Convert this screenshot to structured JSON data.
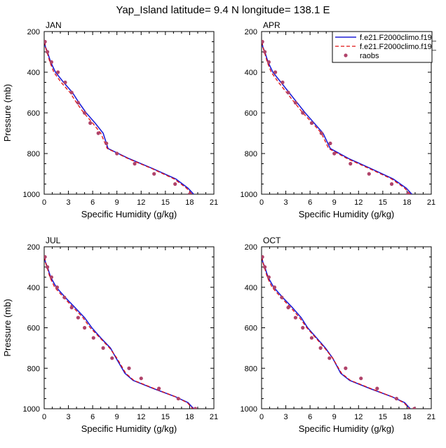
{
  "title": "Yap_Island  latitude= 9.4 N longitude= 138.1 E",
  "colors": {
    "model1": "#1f1fd6",
    "model2": "#e01010",
    "obs": "#b0436a"
  },
  "legend": {
    "placement": "top-right of APR panel",
    "items": [
      "f.e21.F2000climo.f19_",
      "f.e21.F2000climo.f19_",
      "raobs"
    ]
  },
  "chart_data": [
    {
      "type": "line",
      "panel": "JAN",
      "xlabel": "Specific Humidity (g/kg)",
      "ylabel": "Pressure (mb)",
      "xlim": [
        0,
        21
      ],
      "ylim": [
        1000,
        200
      ],
      "y_inverted": true,
      "xticks": [
        0,
        3,
        6,
        9,
        12,
        15,
        18,
        21
      ],
      "yticks": [
        200,
        400,
        600,
        800,
        1000
      ],
      "series": [
        {
          "name": "f.e21.F2000climo.f19_",
          "style": "solid",
          "color": "#1f1fd6",
          "x": [
            0.05,
            0.15,
            0.4,
            0.8,
            1.4,
            2.4,
            3.5,
            4.3,
            5.2,
            6.3,
            7.3,
            7.9,
            10.5,
            13.5,
            16.3,
            17.8,
            18.5
          ],
          "y": [
            250,
            275,
            300,
            350,
            400,
            450,
            500,
            550,
            600,
            650,
            700,
            775,
            825,
            875,
            925,
            970,
            1000
          ]
        },
        {
          "name": "f.e21.F2000climo.f19_",
          "style": "dashed",
          "color": "#e01010",
          "x": [
            0.05,
            0.15,
            0.35,
            0.7,
            1.2,
            2.1,
            3.2,
            4.0,
            4.9,
            6.0,
            7.0,
            7.8,
            10.4,
            13.4,
            16.1,
            17.6,
            18.3
          ],
          "y": [
            250,
            275,
            300,
            350,
            400,
            450,
            500,
            550,
            600,
            650,
            700,
            775,
            825,
            875,
            925,
            970,
            1000
          ]
        }
      ],
      "obs": {
        "name": "raobs",
        "x": [
          0.1,
          0.4,
          0.9,
          1.7,
          2.6,
          3.4,
          4.2,
          5.0,
          5.7,
          6.7,
          7.7,
          9.0,
          11.2,
          13.6,
          16.2,
          18.0
        ],
        "y": [
          250,
          300,
          350,
          400,
          450,
          500,
          550,
          600,
          650,
          700,
          750,
          800,
          850,
          900,
          950,
          1000
        ]
      }
    },
    {
      "type": "line",
      "panel": "APR",
      "xlabel": "Specific Humidity (g/kg)",
      "ylabel": "",
      "xlim": [
        0,
        21
      ],
      "ylim": [
        1000,
        200
      ],
      "y_inverted": true,
      "xticks": [
        0,
        3,
        6,
        9,
        12,
        15,
        18,
        21
      ],
      "yticks": [
        200,
        400,
        600,
        800,
        1000
      ],
      "series": [
        {
          "name": "f.e21.F2000climo.f19_",
          "style": "solid",
          "color": "#1f1fd6",
          "x": [
            0.05,
            0.15,
            0.4,
            0.8,
            1.4,
            2.4,
            3.4,
            4.4,
            5.4,
            6.5,
            7.6,
            8.5,
            10.8,
            13.6,
            16.3,
            17.9,
            18.6
          ],
          "y": [
            250,
            275,
            300,
            350,
            400,
            450,
            500,
            550,
            600,
            650,
            700,
            775,
            825,
            875,
            925,
            970,
            1000
          ]
        },
        {
          "name": "f.e21.F2000climo.f19_",
          "style": "dashed",
          "color": "#e01010",
          "x": [
            0.05,
            0.15,
            0.35,
            0.7,
            1.2,
            2.1,
            3.1,
            4.1,
            5.1,
            6.3,
            7.4,
            8.3,
            10.6,
            13.4,
            16.1,
            17.7,
            18.4
          ],
          "y": [
            250,
            275,
            300,
            350,
            400,
            450,
            500,
            550,
            600,
            650,
            700,
            775,
            825,
            875,
            925,
            970,
            1000
          ]
        }
      ],
      "obs": {
        "name": "raobs",
        "x": [
          0.1,
          0.4,
          0.9,
          1.7,
          2.6,
          3.3,
          4.2,
          5.1,
          6.2,
          7.4,
          8.5,
          9.0,
          11.0,
          13.3,
          16.1,
          18.1
        ],
        "y": [
          250,
          300,
          350,
          400,
          450,
          500,
          550,
          600,
          650,
          700,
          750,
          800,
          850,
          900,
          950,
          1000
        ]
      }
    },
    {
      "type": "line",
      "panel": "JUL",
      "xlabel": "Specific Humidity (g/kg)",
      "ylabel": "Pressure (mb)",
      "xlim": [
        0,
        21
      ],
      "ylim": [
        1000,
        200
      ],
      "y_inverted": true,
      "xticks": [
        0,
        3,
        6,
        9,
        12,
        15,
        18,
        21
      ],
      "yticks": [
        200,
        400,
        600,
        800,
        1000
      ],
      "series": [
        {
          "name": "f.e21.F2000climo.f19_",
          "style": "solid",
          "color": "#1f1fd6",
          "x": [
            0.05,
            0.15,
            0.4,
            0.8,
            1.5,
            2.6,
            3.8,
            5.0,
            5.9,
            7.0,
            8.2,
            8.9,
            10.0,
            11.0,
            13.5,
            16.2,
            17.8,
            18.5
          ],
          "y": [
            250,
            275,
            300,
            350,
            400,
            450,
            500,
            550,
            600,
            650,
            700,
            750,
            825,
            860,
            900,
            940,
            970,
            1000
          ]
        },
        {
          "name": "f.e21.F2000climo.f19_",
          "style": "dashed",
          "color": "#e01010",
          "x": [
            0.05,
            0.15,
            0.35,
            0.7,
            1.3,
            2.4,
            3.6,
            4.8,
            5.7,
            6.9,
            8.1,
            9.0,
            10.1,
            11.1,
            13.6,
            16.2,
            17.7,
            18.4
          ],
          "y": [
            250,
            275,
            300,
            350,
            400,
            450,
            500,
            550,
            600,
            650,
            700,
            750,
            825,
            860,
            900,
            940,
            970,
            1000
          ]
        }
      ],
      "obs": {
        "name": "raobs",
        "x": [
          0.1,
          0.4,
          0.9,
          1.6,
          2.5,
          3.4,
          4.2,
          5.0,
          6.1,
          7.3,
          8.4,
          10.5,
          12.0,
          14.2,
          16.6,
          18.7
        ],
        "y": [
          250,
          300,
          350,
          400,
          450,
          500,
          550,
          600,
          650,
          700,
          750,
          800,
          850,
          900,
          950,
          1000
        ]
      }
    },
    {
      "type": "line",
      "panel": "OCT",
      "xlabel": "Specific Humidity (g/kg)",
      "ylabel": "",
      "xlim": [
        0,
        21
      ],
      "ylim": [
        1000,
        200
      ],
      "y_inverted": true,
      "xticks": [
        0,
        3,
        6,
        9,
        12,
        15,
        18,
        21
      ],
      "yticks": [
        200,
        400,
        600,
        800,
        1000
      ],
      "series": [
        {
          "name": "f.e21.F2000climo.f19_",
          "style": "solid",
          "color": "#1f1fd6",
          "x": [
            0.05,
            0.15,
            0.4,
            0.8,
            1.5,
            2.6,
            3.8,
            4.9,
            5.7,
            6.8,
            7.9,
            8.8,
            9.8,
            10.9,
            13.4,
            16.1,
            17.7,
            18.4
          ],
          "y": [
            250,
            275,
            300,
            350,
            400,
            450,
            500,
            550,
            600,
            650,
            700,
            750,
            825,
            860,
            900,
            940,
            970,
            1000
          ]
        },
        {
          "name": "f.e21.F2000climo.f19_",
          "style": "dashed",
          "color": "#e01010",
          "x": [
            0.05,
            0.15,
            0.35,
            0.7,
            1.3,
            2.4,
            3.6,
            4.7,
            5.6,
            6.7,
            7.8,
            8.8,
            9.9,
            11.0,
            13.5,
            16.1,
            17.6,
            18.3
          ],
          "y": [
            250,
            275,
            300,
            350,
            400,
            450,
            500,
            550,
            600,
            650,
            700,
            750,
            825,
            860,
            900,
            940,
            970,
            1000
          ]
        }
      ],
      "obs": {
        "name": "raobs",
        "x": [
          0.1,
          0.4,
          0.9,
          1.6,
          2.5,
          3.3,
          4.2,
          5.1,
          6.2,
          7.3,
          8.4,
          10.4,
          12.3,
          14.3,
          16.7,
          18.9
        ],
        "y": [
          250,
          300,
          350,
          400,
          450,
          500,
          550,
          600,
          650,
          700,
          750,
          800,
          850,
          900,
          950,
          1000
        ]
      }
    }
  ]
}
